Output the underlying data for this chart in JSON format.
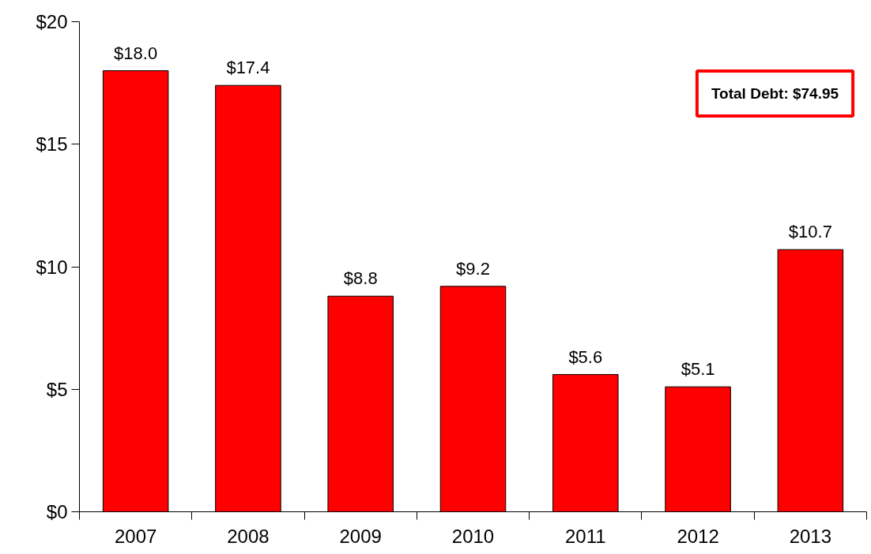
{
  "chart_data": {
    "type": "bar",
    "categories": [
      "2007",
      "2008",
      "2009",
      "2010",
      "2011",
      "2012",
      "2013"
    ],
    "values": [
      18.0,
      17.4,
      8.8,
      9.2,
      5.6,
      5.1,
      10.7
    ],
    "value_labels": [
      "$18.0",
      "$17.4",
      "$8.8",
      "$9.2",
      "$5.6",
      "$5.1",
      "$10.7"
    ],
    "color": "#ff0000",
    "ylim": [
      0,
      20
    ],
    "yticks": [
      {
        "value": 0,
        "label": "$0"
      },
      {
        "value": 5,
        "label": "$5"
      },
      {
        "value": 10,
        "label": "$10"
      },
      {
        "value": 15,
        "label": "$15"
      },
      {
        "value": 20,
        "label": "$20"
      }
    ],
    "grid": false,
    "annotations": [
      "Total Debt: $74.95"
    ]
  }
}
